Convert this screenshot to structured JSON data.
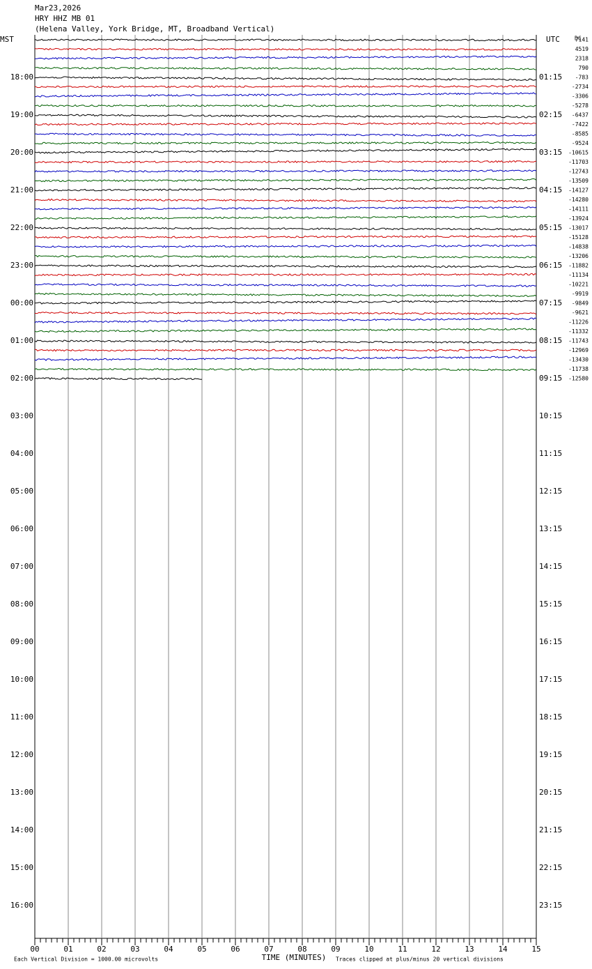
{
  "header": {
    "date": "Mar23,2026",
    "station": "HRY HHZ MB 01",
    "location": "(Helena Valley, York Bridge, MT, Broadband Vertical)"
  },
  "left_axis": {
    "title": "MST",
    "labels": [
      "18:00",
      "19:00",
      "20:00",
      "21:00",
      "22:00",
      "23:00",
      "00:00",
      "01:00",
      "02:00",
      "03:00",
      "04:00",
      "05:00",
      "06:00",
      "07:00",
      "08:00",
      "09:00",
      "10:00",
      "11:00",
      "12:00",
      "13:00",
      "14:00",
      "15:00",
      "16:00"
    ]
  },
  "right_axis": {
    "title": "UTC",
    "labels": [
      "01:15",
      "02:15",
      "03:15",
      "04:15",
      "05:15",
      "06:15",
      "07:15",
      "08:15",
      "09:15",
      "10:15",
      "11:15",
      "12:15",
      "13:15",
      "14:15",
      "15:15",
      "16:15",
      "17:15",
      "18:15",
      "19:15",
      "20:15",
      "21:15",
      "22:15",
      "23:15"
    ]
  },
  "dc": {
    "title": "DC",
    "values": [
      7141,
      4519,
      2318,
      790,
      -783,
      -2734,
      -3306,
      -5278,
      -6437,
      -7422,
      -8585,
      -9524,
      -10615,
      -11703,
      -12743,
      -13509,
      -14127,
      -14280,
      -14111,
      -13924,
      -13017,
      -15128,
      -14838,
      -13206,
      -11882,
      -11134,
      -10221,
      -9919,
      -9849,
      -9621,
      -11226,
      -11332,
      -11743,
      -12969,
      -13430,
      -11738,
      -12580
    ]
  },
  "x_axis": {
    "title": "TIME (MINUTES)",
    "ticks": [
      "00",
      "01",
      "02",
      "03",
      "04",
      "05",
      "06",
      "07",
      "08",
      "09",
      "10",
      "11",
      "12",
      "13",
      "14",
      "15"
    ]
  },
  "footer": {
    "scale": "Each Vertical Division = 1000.00 microvolts",
    "clip": "Traces clipped at plus/minus 20 vertical divisions"
  },
  "trace_colors": [
    "#000000",
    "#d00000",
    "#0000c0",
    "#006000"
  ]
}
